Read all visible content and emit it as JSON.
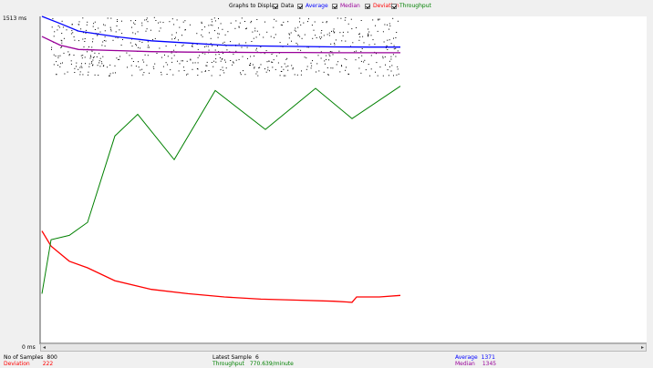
{
  "legend": {
    "title": "Graphs to Display",
    "items": [
      {
        "key": "data",
        "label": "Data",
        "color": "#000000",
        "checked": true
      },
      {
        "key": "average",
        "label": "Average",
        "color": "#0000ff",
        "checked": true
      },
      {
        "key": "median",
        "label": "Median",
        "color": "#990099",
        "checked": true
      },
      {
        "key": "deviation",
        "label": "Deviation",
        "color": "#ff0000",
        "checked": true
      },
      {
        "key": "throughput",
        "label": "Throughput",
        "color": "#008000",
        "checked": true
      }
    ]
  },
  "axis": {
    "y_max_label": "1513  ms",
    "y_min_label": "0  ms"
  },
  "stats": {
    "samples_label": "No of Samples",
    "samples_value": "800",
    "latest_label": "Latest Sample",
    "latest_value": "6",
    "average_label": "Average",
    "average_value": "1371",
    "deviation_label": "Deviation",
    "deviation_value": "222",
    "throughput_label": "Throughput",
    "throughput_value": "770.639/minute",
    "median_label": "Median",
    "median_value": "1345"
  },
  "colors": {
    "data": "#000000",
    "average": "#0000ff",
    "median": "#990099",
    "deviation": "#ff0000",
    "throughput": "#008000"
  },
  "chart_data": {
    "type": "line",
    "ylim": [
      0,
      1513
    ],
    "series": [
      {
        "name": "Average",
        "points": [
          [
            0,
            1513
          ],
          [
            20,
            1480
          ],
          [
            40,
            1445
          ],
          [
            80,
            1420
          ],
          [
            120,
            1400
          ],
          [
            160,
            1390
          ],
          [
            200,
            1380
          ],
          [
            240,
            1376
          ],
          [
            280,
            1374
          ],
          [
            320,
            1372
          ],
          [
            360,
            1371
          ],
          [
            393,
            1371
          ]
        ]
      },
      {
        "name": "Median",
        "points": [
          [
            0,
            1420
          ],
          [
            20,
            1380
          ],
          [
            40,
            1360
          ],
          [
            80,
            1355
          ],
          [
            120,
            1350
          ],
          [
            160,
            1348
          ],
          [
            200,
            1347
          ],
          [
            240,
            1346
          ],
          [
            280,
            1346
          ],
          [
            320,
            1345
          ],
          [
            360,
            1345
          ],
          [
            393,
            1345
          ]
        ]
      },
      {
        "name": "Deviation",
        "points": [
          [
            0,
            520
          ],
          [
            10,
            450
          ],
          [
            30,
            380
          ],
          [
            50,
            350
          ],
          [
            80,
            290
          ],
          [
            120,
            250
          ],
          [
            160,
            230
          ],
          [
            200,
            215
          ],
          [
            240,
            205
          ],
          [
            280,
            200
          ],
          [
            320,
            195
          ],
          [
            340,
            190
          ],
          [
            345,
            215
          ],
          [
            370,
            215
          ],
          [
            393,
            222
          ]
        ]
      },
      {
        "name": "Throughput",
        "points": [
          [
            0,
            230
          ],
          [
            10,
            480
          ],
          [
            30,
            500
          ],
          [
            50,
            560
          ],
          [
            80,
            960
          ],
          [
            105,
            1060
          ],
          [
            145,
            850
          ],
          [
            190,
            1170
          ],
          [
            245,
            990
          ],
          [
            300,
            1180
          ],
          [
            340,
            1040
          ],
          [
            393,
            1190
          ]
        ]
      }
    ]
  }
}
